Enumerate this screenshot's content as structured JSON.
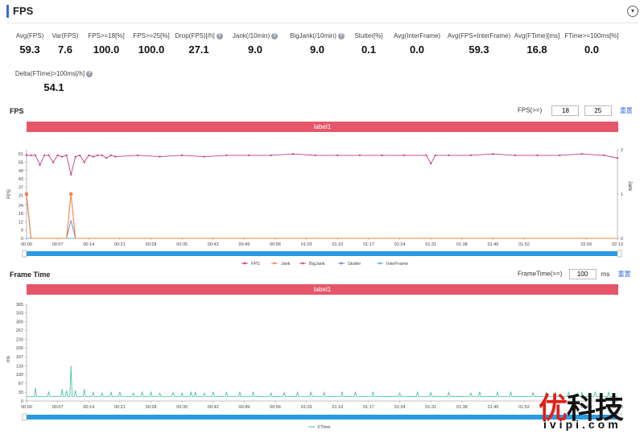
{
  "header": {
    "title": "FPS",
    "toggle_icon": "chevron-down-icon"
  },
  "stats": [
    {
      "label": "Avg(FPS)",
      "value": "59.3",
      "help": false
    },
    {
      "label": "Var(FPS)",
      "value": "7.6",
      "help": false
    },
    {
      "label": "FPS>=18[%]",
      "value": "100.0",
      "help": false
    },
    {
      "label": "FPS>=25[%]",
      "value": "100.0",
      "help": false
    },
    {
      "label": "Drop(FPS)[/h]",
      "value": "27.1",
      "help": true
    },
    {
      "label": "Jank(/10min)",
      "value": "9.0",
      "help": true
    },
    {
      "label": "BigJank(/10min)",
      "value": "9.0",
      "help": true
    },
    {
      "label": "Stutter[%]",
      "value": "0.1",
      "help": false
    },
    {
      "label": "Avg(InterFrame)",
      "value": "0.0",
      "help": false
    },
    {
      "label": "Avg(FPS+InterFrame)",
      "value": "59.3",
      "help": false
    },
    {
      "label": "Avg(FTime)[ms]",
      "value": "16.8",
      "help": false
    },
    {
      "label": "FTime>=100ms[%]",
      "value": "0.0",
      "help": false
    },
    {
      "label": "Delta(FTime)>100ms[/h]",
      "value": "54.1",
      "help": true
    }
  ],
  "help_glyph": "?",
  "fps_section": {
    "title": "FPS",
    "control_label": "FPS(>=)",
    "threshold1": "18",
    "threshold2": "25",
    "reset_label": "重置",
    "band_label": "label1",
    "y_label": "FPS",
    "y2_label": "Jank"
  },
  "ft_section": {
    "title": "Frame Time",
    "control_label": "FrameTime(>=)",
    "threshold": "100",
    "unit": "ms",
    "reset_label": "重置",
    "band_label": "label1",
    "y_label": "ms"
  },
  "watermark": {
    "cn_first": "优",
    "cn_rest": "科技",
    "en": "ivipi.com"
  },
  "colors": {
    "fps": "#c23c8c",
    "jank": "#f0883a",
    "bigjank": "#d94a5f",
    "stutter": "#6a7fd8",
    "interframe": "#5ab4e0",
    "ftime": "#3dbfa0",
    "band": "#e5566a",
    "slider": "#2a9be0"
  },
  "chart_data": [
    {
      "type": "line",
      "title": "FPS",
      "x_ticks": [
        "00:00",
        "00:07",
        "00:14",
        "00:21",
        "00:28",
        "00:35",
        "00:42",
        "00:49",
        "00:56",
        "01:03",
        "01:10",
        "01:17",
        "01:24",
        "01:31",
        "01:38",
        "01:45",
        "01:52",
        "02:06",
        "02:13"
      ],
      "xlim_seconds": [
        0,
        133
      ],
      "ylabel": "FPS",
      "y_ticks": [
        0,
        6,
        12,
        18,
        24,
        31,
        37,
        43,
        49,
        55,
        61
      ],
      "ylim": [
        0,
        64
      ],
      "y2label": "Jank",
      "y2_ticks": [
        0,
        1,
        2
      ],
      "y2lim": [
        0,
        2
      ],
      "legend": [
        "FPS",
        "Jank",
        "BigJank",
        "Stutter",
        "InterFrame"
      ],
      "legend_position": "bottom",
      "series": [
        {
          "name": "FPS",
          "axis": "left",
          "x": [
            0,
            1,
            2,
            3,
            4,
            5,
            6,
            7,
            8,
            9,
            10,
            11,
            12,
            13,
            14,
            15,
            16,
            17,
            18,
            19,
            20,
            25,
            30,
            35,
            40,
            45,
            50,
            55,
            60,
            65,
            70,
            75,
            80,
            85,
            90,
            91,
            92,
            95,
            100,
            105,
            110,
            115,
            120,
            125,
            130,
            133
          ],
          "y": [
            60,
            60,
            60,
            53,
            60,
            60,
            55,
            60,
            59,
            60,
            46,
            59,
            60,
            55,
            60,
            59,
            60,
            60,
            58,
            60,
            59,
            60,
            59,
            60,
            59,
            60,
            60,
            60,
            61,
            60,
            60,
            60,
            60,
            60,
            60,
            54,
            60,
            60,
            60,
            61,
            60,
            60,
            60,
            61,
            60,
            58
          ]
        },
        {
          "name": "Jank",
          "axis": "right",
          "x": [
            0,
            1,
            9,
            10,
            11,
            133
          ],
          "y": [
            1,
            0,
            0,
            1,
            0,
            0
          ]
        },
        {
          "name": "BigJank",
          "axis": "right",
          "x": [
            0,
            1,
            9,
            10,
            11,
            133
          ],
          "y": [
            1,
            0,
            0,
            1,
            0,
            0
          ]
        },
        {
          "name": "Stutter",
          "axis": "left",
          "x": [
            0,
            1,
            9,
            10,
            11,
            133
          ],
          "y": [
            31,
            0,
            0,
            13,
            0,
            0
          ]
        },
        {
          "name": "InterFrame",
          "axis": "left",
          "x": [
            0,
            133
          ],
          "y": [
            0,
            0
          ]
        }
      ]
    },
    {
      "type": "line",
      "title": "Frame Time",
      "x_ticks": [
        "00:00",
        "00:07",
        "00:14",
        "00:21",
        "00:28",
        "00:35",
        "00:42",
        "00:49",
        "00:56",
        "01:03",
        "01:10",
        "01:17",
        "01:24",
        "01:31",
        "01:38",
        "01:45",
        "01:52",
        "02:06",
        "02:13"
      ],
      "xlim_seconds": [
        0,
        133
      ],
      "ylabel": "ms",
      "y_ticks": [
        0,
        33,
        67,
        100,
        133,
        167,
        200,
        233,
        267,
        300,
        333,
        365
      ],
      "ylim": [
        0,
        365
      ],
      "legend": [
        "FTime"
      ],
      "legend_position": "bottom",
      "series": [
        {
          "name": "FTime",
          "baseline": 17,
          "spikes": [
            [
              2,
              50
            ],
            [
              5,
              35
            ],
            [
              8,
              45
            ],
            [
              9,
              40
            ],
            [
              10,
              133
            ],
            [
              11,
              40
            ],
            [
              13,
              45
            ],
            [
              15,
              35
            ],
            [
              17,
              30
            ],
            [
              19,
              35
            ],
            [
              21,
              35
            ],
            [
              24,
              30
            ],
            [
              26,
              35
            ],
            [
              28,
              35
            ],
            [
              30,
              30
            ],
            [
              33,
              33
            ],
            [
              35,
              30
            ],
            [
              37,
              35
            ],
            [
              38,
              35
            ],
            [
              40,
              30
            ],
            [
              42,
              35
            ],
            [
              45,
              35
            ],
            [
              48,
              35
            ],
            [
              51,
              35
            ],
            [
              55,
              30
            ],
            [
              58,
              33
            ],
            [
              61,
              35
            ],
            [
              64,
              35
            ],
            [
              67,
              33
            ],
            [
              71,
              35
            ],
            [
              74,
              35
            ],
            [
              78,
              35
            ],
            [
              84,
              30
            ],
            [
              88,
              35
            ],
            [
              91,
              32
            ],
            [
              95,
              33
            ],
            [
              100,
              30
            ],
            [
              102,
              35
            ],
            [
              106,
              35
            ],
            [
              109,
              35
            ],
            [
              114,
              32
            ],
            [
              117,
              35
            ],
            [
              119,
              35
            ],
            [
              122,
              33
            ],
            [
              125,
              35
            ],
            [
              128,
              35
            ],
            [
              131,
              35
            ]
          ]
        }
      ]
    }
  ]
}
